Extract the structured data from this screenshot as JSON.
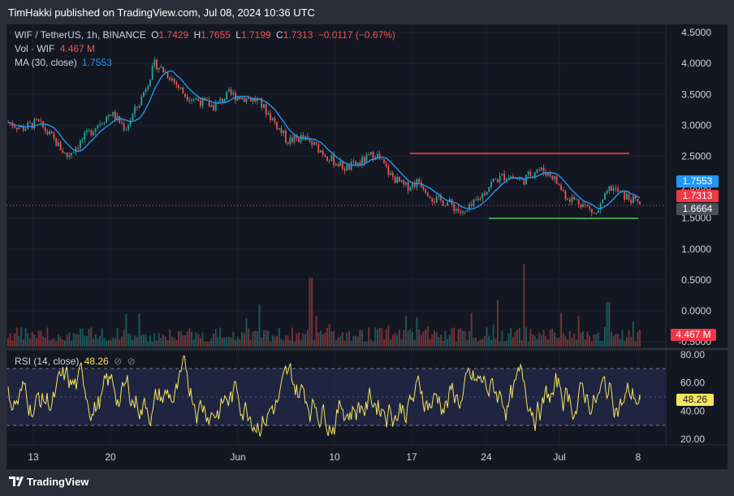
{
  "header": {
    "published_text": "TimHakki published on TradingView.com, Jul 08, 2024 10:36 UTC"
  },
  "legend": {
    "symbol": "WIF / TetherUS, 1h, BINANCE",
    "o_label": "O",
    "o_value": "1.7429",
    "h_label": "H",
    "h_value": "1.7655",
    "l_label": "L",
    "l_value": "1.7199",
    "c_label": "C",
    "c_value": "1.7313",
    "change": "−0.0117 (−0.67%)",
    "vol_label": "Vol · WIF",
    "vol_value": "4.467 M",
    "ma_label": "MA (30, close)",
    "ma_value": "1.7553",
    "rsi_label": "RSI (14, close)",
    "rsi_value": "48.26"
  },
  "badges": {
    "ma": "1.7553",
    "close": "1.7313",
    "line": "1.6664",
    "volume": "4.467 M",
    "rsi": "48.26"
  },
  "footer": {
    "brand": "TradingView"
  },
  "colors": {
    "up": "#26a69a",
    "down": "#ef5350",
    "ma": "#2196f3",
    "rsi": "#f5e65e",
    "resistance": "#f23645",
    "support": "#4caf50",
    "background": "#131722"
  },
  "chart_data": {
    "type": "candlestick",
    "symbol": "WIF / TetherUS",
    "interval": "1h",
    "exchange": "BINANCE",
    "price_axis": {
      "ticks": [
        "4.5000",
        "4.0000",
        "3.5000",
        "3.0000",
        "2.5000",
        "2.0000",
        "1.5000",
        "1.0000",
        "0.5000",
        "0.0000",
        "-0.5000"
      ],
      "range": [
        -0.5,
        4.5
      ]
    },
    "x_axis": {
      "ticks": [
        "13",
        "20",
        "Jun",
        "10",
        "17",
        "24",
        "Jul",
        "8"
      ]
    },
    "price_path": [
      [
        "13",
        3.05
      ],
      [
        "15",
        2.95
      ],
      [
        "17",
        3.05
      ],
      [
        "18",
        2.8
      ],
      [
        "20",
        2.5
      ],
      [
        "21",
        2.75
      ],
      [
        "23",
        3.0
      ],
      [
        "24",
        3.2
      ],
      [
        "25",
        2.95
      ],
      [
        "27",
        3.4
      ],
      [
        "28",
        4.0
      ],
      [
        "29",
        3.8
      ],
      [
        "30",
        3.5
      ],
      [
        "Jun",
        3.4
      ],
      [
        "3",
        3.3
      ],
      [
        "4",
        3.5
      ],
      [
        "5",
        3.45
      ],
      [
        "6",
        3.4
      ],
      [
        "7",
        3.1
      ],
      [
        "8",
        2.75
      ],
      [
        "10",
        2.8
      ],
      [
        "11",
        2.65
      ],
      [
        "13",
        2.45
      ],
      [
        "15",
        2.3
      ],
      [
        "16",
        2.4
      ],
      [
        "17",
        2.55
      ],
      [
        "18",
        2.2
      ],
      [
        "19",
        2.0
      ],
      [
        "20",
        2.1
      ],
      [
        "22",
        1.8
      ],
      [
        "23",
        1.75
      ],
      [
        "24",
        1.55
      ],
      [
        "25",
        1.8
      ],
      [
        "26",
        2.1
      ],
      [
        "28",
        2.2
      ],
      [
        "29",
        2.1
      ],
      [
        "Jul",
        2.3
      ],
      [
        "2",
        2.2
      ],
      [
        "3",
        1.85
      ],
      [
        "4",
        1.75
      ],
      [
        "5",
        1.55
      ],
      [
        "6",
        2.0
      ],
      [
        "7",
        1.85
      ],
      [
        "8",
        1.73
      ]
    ],
    "ma_30": 1.7553,
    "last_close": 1.7313,
    "horizontal_lines": [
      {
        "role": "resistance",
        "price": 2.55,
        "from": "17",
        "to": "Jul 7",
        "color": "#f23645"
      },
      {
        "role": "support",
        "price": 1.5,
        "from": "24",
        "to": "Jul 8",
        "color": "#4caf50"
      }
    ],
    "volume": {
      "last": "4.467 M",
      "spikes": [
        "Jun 8",
        "25",
        "Jul 5"
      ]
    },
    "rsi": {
      "period": 14,
      "last": 48.26,
      "ticks": [
        "80.00",
        "60.00",
        "40.00",
        "20.00"
      ],
      "range": [
        17,
        82
      ],
      "band": [
        30,
        70
      ],
      "midline": 50
    }
  }
}
